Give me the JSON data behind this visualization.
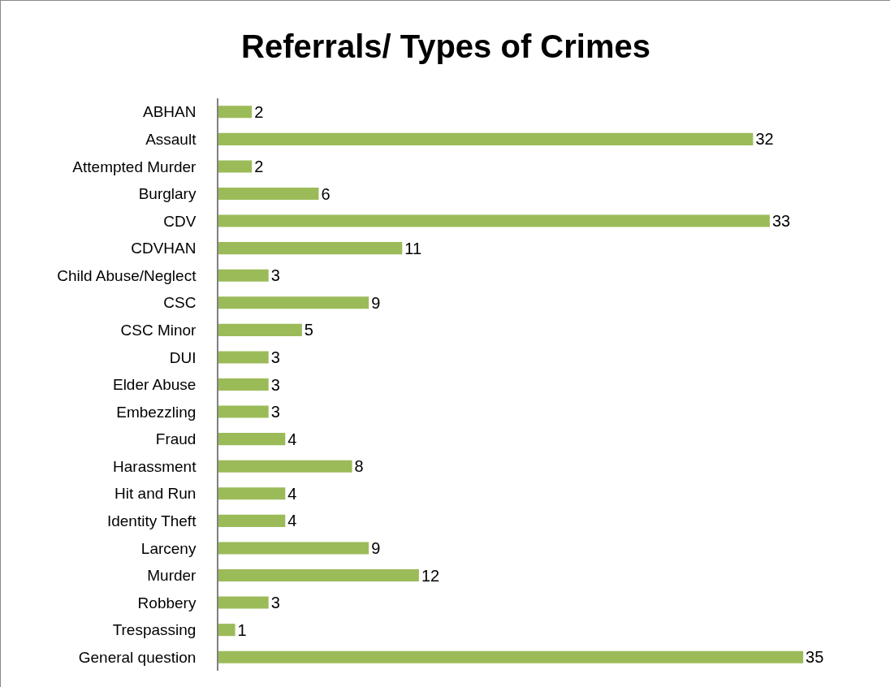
{
  "chart_data": {
    "type": "bar",
    "title": "Referrals/ Types of Crimes",
    "orientation": "horizontal",
    "categories": [
      "ABHAN",
      "Assault",
      "Attempted Murder",
      "Burglary",
      "CDV",
      "CDVHAN",
      "Child Abuse/Neglect",
      "CSC",
      "CSC Minor",
      "DUI",
      "Elder Abuse",
      "Embezzling",
      "Fraud",
      "Harassment",
      "Hit and Run",
      "Identity Theft",
      "Larceny",
      "Murder",
      "Robbery",
      "Trespassing",
      "General question"
    ],
    "values": [
      2,
      32,
      2,
      6,
      33,
      11,
      3,
      9,
      5,
      3,
      3,
      3,
      4,
      8,
      4,
      4,
      9,
      12,
      3,
      1,
      35
    ],
    "color": "#9bbb59",
    "tick_labels": "y",
    "data_labels": true
  }
}
